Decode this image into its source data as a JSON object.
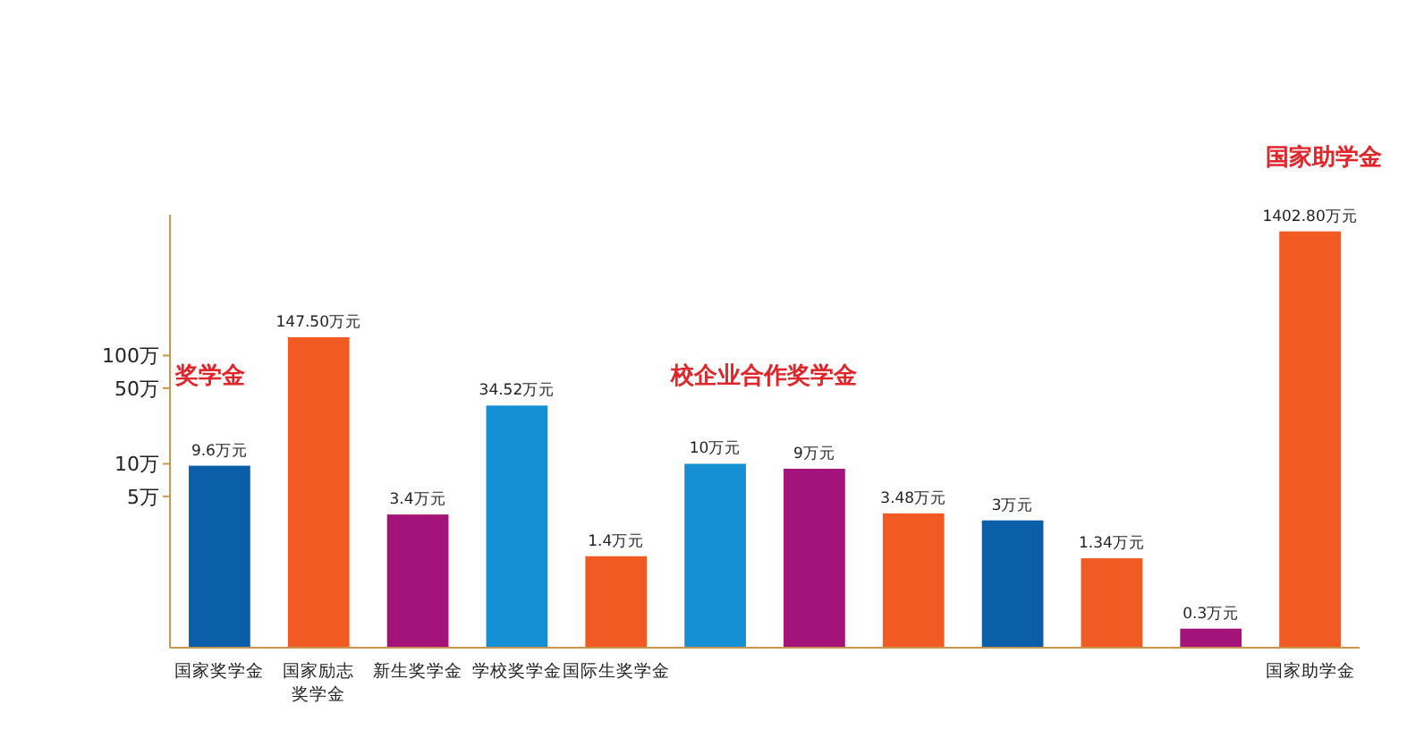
{
  "chart_data": {
    "type": "bar",
    "log": true,
    "categories": [
      "国家奖学金",
      "国家励志奖学金",
      "新生奖学金",
      "学校奖学金",
      "国际生奖学金",
      null,
      null,
      null,
      null,
      null,
      null,
      "国家助学金"
    ],
    "values": [
      9.6,
      147.5,
      3.4,
      34.52,
      1.4,
      10,
      9,
      3.48,
      3,
      1.34,
      0.3,
      1402.8
    ],
    "value_labels": [
      "9.6万元",
      "147.50万元",
      "3.4万元",
      "34.52万元",
      "1.4万元",
      "10万元",
      "9万元",
      "3.48万元",
      "3万元",
      "1.34万元",
      "0.3万元",
      "1402.80万元"
    ],
    "colors": [
      "#0b5ea8",
      "#f15a22",
      "#a3137a",
      "#1690d5",
      "#f15a22",
      "#1690d5",
      "#a3137a",
      "#f15a22",
      "#0b5ea8",
      "#f15a22",
      "#a3137a",
      "#f15a22"
    ],
    "ylim": [
      0.2,
      2000
    ],
    "yticks": [
      {
        "value": 5,
        "label": "5万"
      },
      {
        "value": 10,
        "label": "10万"
      },
      {
        "value": 50,
        "label": "50万"
      },
      {
        "value": 100,
        "label": "100万"
      }
    ],
    "annotations": [
      "奖学金",
      "校企业合作奖学金",
      "国家助学金"
    ],
    "grid": false
  }
}
